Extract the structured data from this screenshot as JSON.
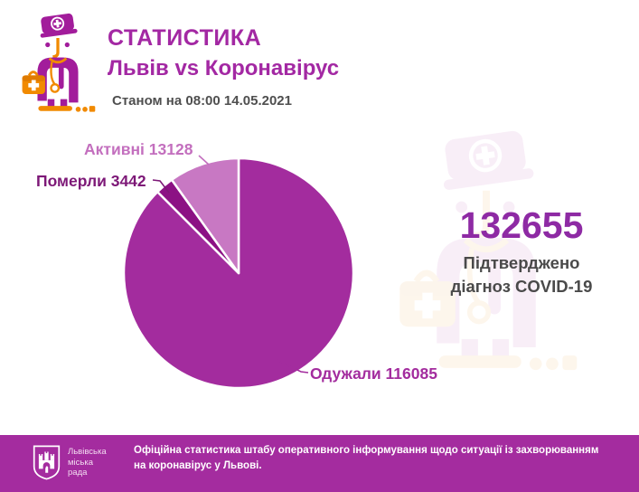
{
  "header": {
    "title": "СТАТИСТИКА",
    "subtitle": "Львів vs Коронавірус",
    "date_line": "Станом на 08:00 14.05.2021"
  },
  "summary": {
    "value": "132655",
    "label_line1": "Підтверджено",
    "label_line2": "діагноз COVID-19"
  },
  "chart_data": {
    "type": "pie",
    "total": 132655,
    "start_angle_deg": 0,
    "direction": "clockwise",
    "slices": [
      {
        "key": "recovered",
        "label": "Одужали",
        "value": 116085,
        "color": "#a32c9e"
      },
      {
        "key": "died",
        "label": "Померли",
        "value": 3442,
        "color": "#8c1184"
      },
      {
        "key": "active",
        "label": "Активні",
        "value": 13128,
        "color": "#c878c3"
      }
    ],
    "callouts": {
      "active": "Активні 13128",
      "died": "Померли 3442",
      "recovered": "Одужали 116085"
    },
    "legend_position": "callout-labels",
    "grid": false
  },
  "footer": {
    "crest_caption_line1": "Львівська",
    "crest_caption_line2": "міська",
    "crest_caption_line3": "рада",
    "text": "Офіційна статистика штабу оперативного інформування щодо ситуації із захворюванням на коронавірус у Львові."
  },
  "icons": {
    "header_icon": "doctor-icon",
    "watermark_icon": "doctor-watermark-icon",
    "footer_icon": "lviv-city-council-crest-icon"
  },
  "colors": {
    "accent_title": "#a328a3",
    "accent_number": "#8e2aa4",
    "pie_recovered": "#a32c9e",
    "pie_died": "#8c1184",
    "pie_active": "#c878c3",
    "callout_active": "#c36fbe",
    "callout_died": "#7d1877",
    "callout_recovered": "#a32c9e",
    "footer_background": "#a42c9f",
    "text_gray": "#4a4a4a",
    "icon_orange": "#f18a00",
    "icon_purple": "#a21c9b"
  }
}
